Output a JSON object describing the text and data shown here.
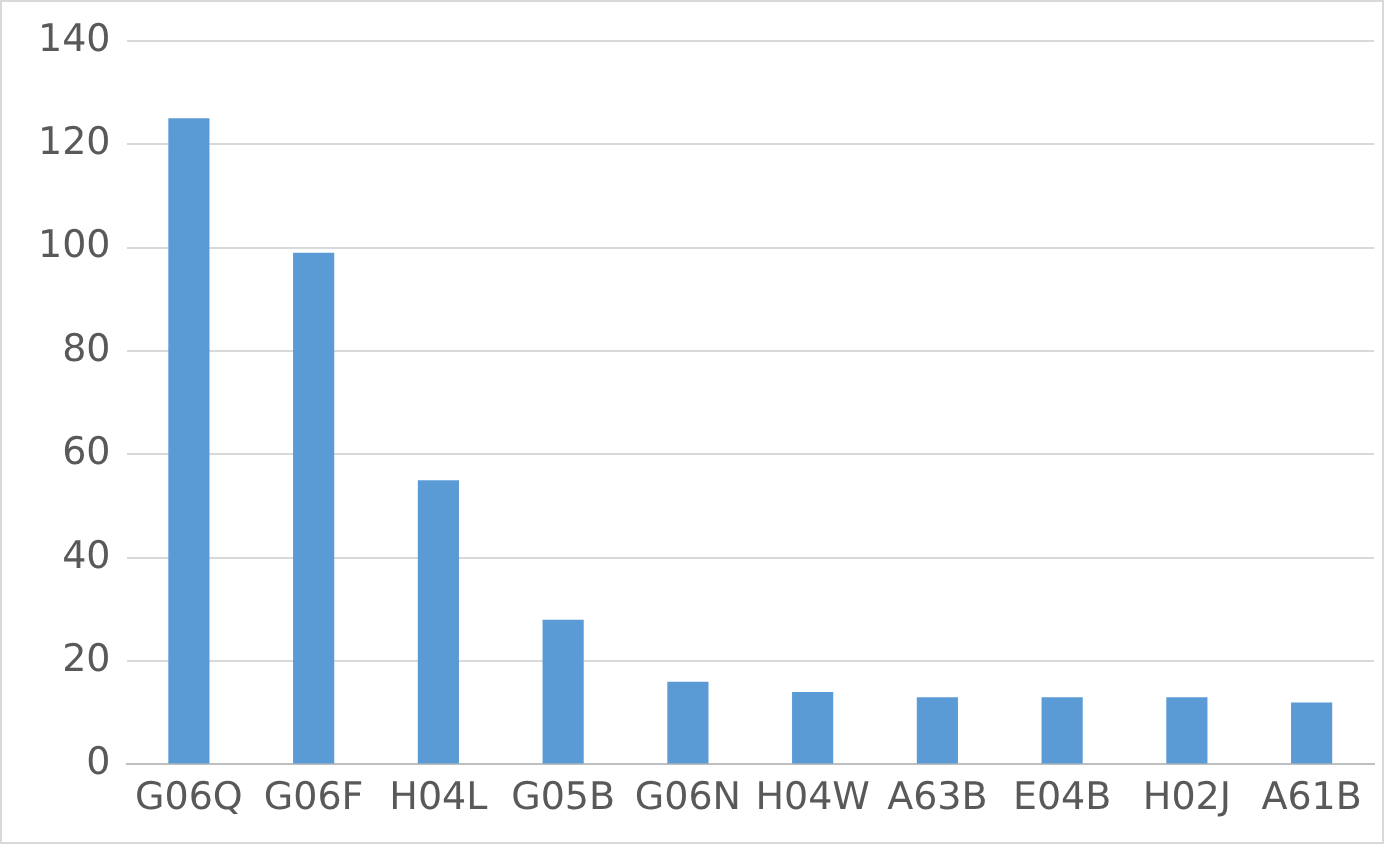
{
  "chart_data": {
    "type": "bar",
    "categories": [
      "G06Q",
      "G06F",
      "H04L",
      "G05B",
      "G06N",
      "H04W",
      "A63B",
      "E04B",
      "H02J",
      "A61B"
    ],
    "values": [
      125,
      99,
      55,
      28,
      16,
      14,
      13,
      13,
      13,
      12
    ],
    "color": "#5b9bd5",
    "ylim": [
      0,
      140
    ],
    "yticks": [
      0,
      20,
      40,
      60,
      80,
      100,
      120,
      140
    ],
    "grid": "y"
  }
}
